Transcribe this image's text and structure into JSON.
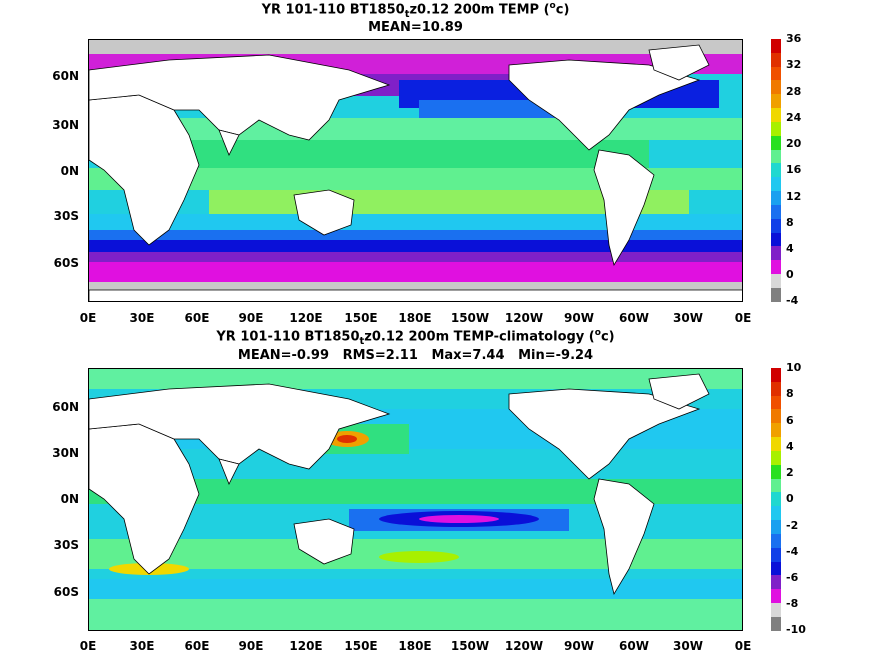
{
  "panels": [
    {
      "title_prefix": "YR 101-110 BT1850",
      "title_subscript": "t",
      "title_suffix": "z0.12 200m TEMP (",
      "unit_sup": "o",
      "unit_tail": "c)",
      "stats": "MEAN=10.89",
      "colorbar_ticks": [
        "36",
        "32",
        "28",
        "24",
        "20",
        "16",
        "12",
        "8",
        "4",
        "0",
        "-4"
      ],
      "colorbar_colors": [
        "#d00000",
        "#e03000",
        "#f05000",
        "#f07a00",
        "#f0a000",
        "#f0d800",
        "#a8f000",
        "#28e020",
        "#60f090",
        "#20d8d0",
        "#20c8f0",
        "#1aa0f0",
        "#1a70f0",
        "#1040e8",
        "#0a10d8",
        "#8020c8",
        "#e010e0",
        "#d8d8d8",
        "#808080"
      ]
    },
    {
      "title_prefix": "YR 101-110 BT1850",
      "title_subscript": "t",
      "title_suffix": "z0.12 200m TEMP-climatology (",
      "unit_sup": "o",
      "unit_tail": "c)",
      "stats": "MEAN=-0.99   RMS=2.11   Max=7.44   Min=-9.24",
      "colorbar_ticks": [
        "10",
        "8",
        "6",
        "4",
        "2",
        "0",
        "-2",
        "-4",
        "-6",
        "-8",
        "-10"
      ],
      "colorbar_colors": [
        "#d00000",
        "#e03000",
        "#f05000",
        "#f07a00",
        "#f0a000",
        "#f0d800",
        "#a8f000",
        "#28e020",
        "#60f090",
        "#20d8d0",
        "#20c8f0",
        "#1aa0f0",
        "#1a70f0",
        "#1040e8",
        "#0a10d8",
        "#8020c8",
        "#e010e0",
        "#d8d8d8",
        "#808080"
      ]
    }
  ],
  "lat_labels": [
    "60N",
    "30N",
    "0N",
    "30S",
    "60S"
  ],
  "lon_labels": [
    "0E",
    "30E",
    "60E",
    "90E",
    "120E",
    "150E",
    "180E",
    "150W",
    "120W",
    "90W",
    "60W",
    "30W",
    "0E"
  ]
}
